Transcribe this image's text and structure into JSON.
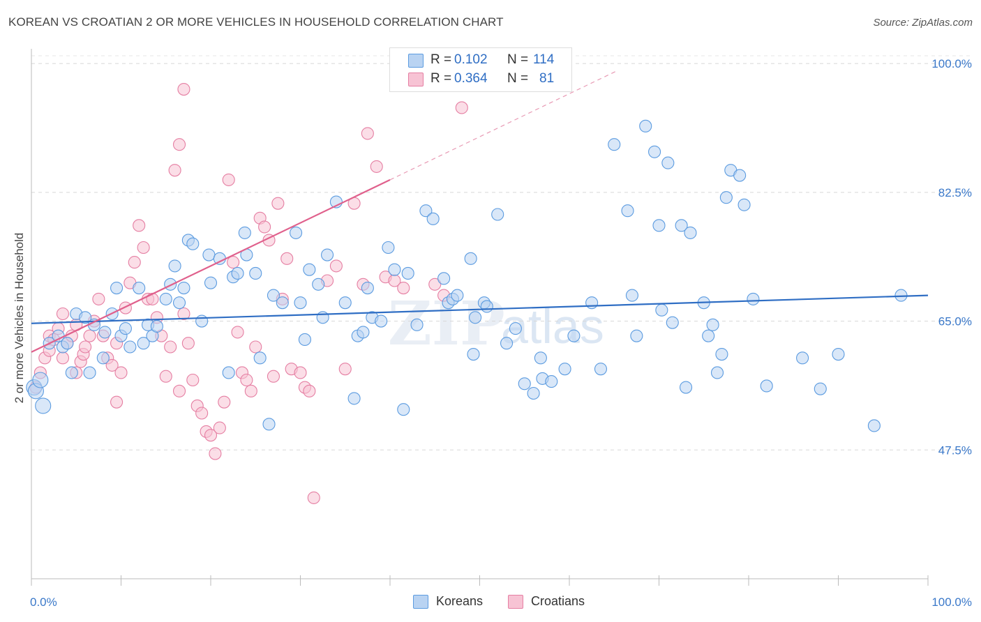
{
  "chart_data": {
    "type": "scatter",
    "title": "KOREAN VS CROATIAN 2 OR MORE VEHICLES IN HOUSEHOLD CORRELATION CHART",
    "source": "Source: ZipAtlas.com",
    "ylabel": "2 or more Vehicles in Household",
    "xlim": [
      0,
      100
    ],
    "ylim": [
      30,
      102
    ],
    "x_tick_labels": [
      "0.0%",
      "100.0%"
    ],
    "y_ticks": [
      47.5,
      65.0,
      82.5,
      100.0
    ],
    "y_tick_labels": [
      "47.5%",
      "65.0%",
      "82.5%",
      "100.0%"
    ],
    "grid": "horizontal dashed",
    "legend_position": "bottom-center",
    "stats": [
      {
        "series": "Koreans",
        "r_label": "R =",
        "r_value": "0.102",
        "n_label": "N =",
        "n_value": "114"
      },
      {
        "series": "Croatians",
        "r_label": "R =",
        "r_value": "0.364",
        "n_label": "N =",
        "n_value": "81"
      }
    ],
    "series": [
      {
        "name": "Koreans",
        "color": "#5b9be0",
        "fill": "#b9d3f2",
        "trend": {
          "x0": 0,
          "y0": 64.7,
          "x1": 100,
          "y1": 68.5
        },
        "points": [
          [
            0.3,
            56
          ],
          [
            0.5,
            55.5
          ],
          [
            1,
            57
          ],
          [
            1.3,
            53.5
          ],
          [
            2,
            62
          ],
          [
            3,
            63
          ],
          [
            3.5,
            61.5
          ],
          [
            4,
            62
          ],
          [
            4.5,
            58
          ],
          [
            5,
            66
          ],
          [
            6,
            65.5
          ],
          [
            6.5,
            58
          ],
          [
            7,
            64.5
          ],
          [
            8,
            60
          ],
          [
            8.2,
            63.5
          ],
          [
            9,
            66
          ],
          [
            9.5,
            69.5
          ],
          [
            10,
            63
          ],
          [
            10.5,
            64
          ],
          [
            11,
            61.5
          ],
          [
            12,
            69.5
          ],
          [
            12.5,
            62
          ],
          [
            13,
            64.5
          ],
          [
            13.5,
            63
          ],
          [
            14,
            64.3
          ],
          [
            15,
            68
          ],
          [
            15.5,
            70
          ],
          [
            16,
            72.5
          ],
          [
            16.5,
            67.5
          ],
          [
            17,
            69.5
          ],
          [
            17.5,
            76
          ],
          [
            18,
            75.5
          ],
          [
            19,
            65
          ],
          [
            19.8,
            74
          ],
          [
            20,
            70.2
          ],
          [
            21,
            73.5
          ],
          [
            22,
            58
          ],
          [
            22.5,
            71
          ],
          [
            23,
            71.5
          ],
          [
            23.8,
            77
          ],
          [
            24,
            74
          ],
          [
            25,
            71.5
          ],
          [
            25.5,
            60
          ],
          [
            26.5,
            51
          ],
          [
            27,
            68.5
          ],
          [
            28,
            67.5
          ],
          [
            29.5,
            77
          ],
          [
            30,
            67.5
          ],
          [
            30.5,
            62.5
          ],
          [
            31,
            72
          ],
          [
            32,
            70
          ],
          [
            32.5,
            65.5
          ],
          [
            33,
            74
          ],
          [
            34,
            81.2
          ],
          [
            35,
            67.5
          ],
          [
            36,
            54.5
          ],
          [
            36.4,
            63
          ],
          [
            37,
            63.5
          ],
          [
            37.5,
            69.5
          ],
          [
            38,
            65.5
          ],
          [
            39,
            65
          ],
          [
            39.8,
            75
          ],
          [
            40.5,
            72
          ],
          [
            41.5,
            53
          ],
          [
            42,
            71.5
          ],
          [
            43,
            64.5
          ],
          [
            44,
            80
          ],
          [
            44.8,
            78.9
          ],
          [
            46,
            70.8
          ],
          [
            46.5,
            67.5
          ],
          [
            47,
            68
          ],
          [
            47.5,
            68.5
          ],
          [
            49,
            73.5
          ],
          [
            49.3,
            60.5
          ],
          [
            49.5,
            65.5
          ],
          [
            50.5,
            67.5
          ],
          [
            50.8,
            67
          ],
          [
            52,
            79.5
          ],
          [
            53,
            62
          ],
          [
            54,
            64
          ],
          [
            55,
            56.5
          ],
          [
            56,
            55.2
          ],
          [
            56.8,
            60
          ],
          [
            57,
            57.2
          ],
          [
            58,
            56.8
          ],
          [
            59.5,
            58.5
          ],
          [
            60.5,
            63
          ],
          [
            62.5,
            67.5
          ],
          [
            63.5,
            58.5
          ],
          [
            65,
            89
          ],
          [
            66.5,
            80
          ],
          [
            67,
            68.5
          ],
          [
            67.5,
            63
          ],
          [
            68.5,
            91.5
          ],
          [
            69.5,
            88
          ],
          [
            70,
            78
          ],
          [
            70.3,
            66.5
          ],
          [
            71,
            86.5
          ],
          [
            71.5,
            64.8
          ],
          [
            72.5,
            78
          ],
          [
            73,
            56
          ],
          [
            73.5,
            77
          ],
          [
            75,
            67.5
          ],
          [
            75.5,
            63
          ],
          [
            76,
            64.5
          ],
          [
            76.5,
            58
          ],
          [
            77,
            60.5
          ],
          [
            77.5,
            81.8
          ],
          [
            78,
            85.5
          ],
          [
            79,
            84.8
          ],
          [
            79.5,
            80.8
          ],
          [
            80.5,
            68
          ],
          [
            82,
            56.2
          ],
          [
            86,
            60
          ],
          [
            88,
            55.8
          ],
          [
            90,
            60.5
          ],
          [
            94,
            50.8
          ],
          [
            97,
            68.5
          ]
        ]
      },
      {
        "name": "Croatians",
        "color": "#e57ea2",
        "fill": "#f7c3d4",
        "trend": {
          "x0": 0,
          "y0": 60.8,
          "x1": 40,
          "y1": 84.2
        },
        "points": [
          [
            0.5,
            56
          ],
          [
            1,
            58
          ],
          [
            1.5,
            60
          ],
          [
            2,
            61
          ],
          [
            2,
            63
          ],
          [
            2.5,
            62.5
          ],
          [
            3,
            64
          ],
          [
            3.5,
            66
          ],
          [
            3.5,
            60
          ],
          [
            4,
            62
          ],
          [
            4.5,
            63
          ],
          [
            5,
            58
          ],
          [
            5,
            64.5
          ],
          [
            5.5,
            59.5
          ],
          [
            5.8,
            60.5
          ],
          [
            6,
            61.5
          ],
          [
            6.5,
            63
          ],
          [
            7,
            65
          ],
          [
            7.5,
            68
          ],
          [
            8,
            63
          ],
          [
            8.5,
            60
          ],
          [
            9,
            59
          ],
          [
            9.5,
            62
          ],
          [
            9.5,
            54
          ],
          [
            10,
            58
          ],
          [
            10.5,
            66.8
          ],
          [
            11,
            70.2
          ],
          [
            11.5,
            73
          ],
          [
            12,
            78
          ],
          [
            12.5,
            75
          ],
          [
            13,
            68
          ],
          [
            13.5,
            68
          ],
          [
            14,
            65.5
          ],
          [
            14.5,
            63
          ],
          [
            15,
            57.5
          ],
          [
            15.5,
            61.5
          ],
          [
            16,
            85.5
          ],
          [
            16.5,
            89
          ],
          [
            16.5,
            55.5
          ],
          [
            17,
            96.5
          ],
          [
            17,
            66
          ],
          [
            17.5,
            62
          ],
          [
            18,
            57
          ],
          [
            18.5,
            53.5
          ],
          [
            19,
            52.5
          ],
          [
            19.5,
            50
          ],
          [
            20,
            49.5
          ],
          [
            20.5,
            47
          ],
          [
            21,
            50.5
          ],
          [
            21.5,
            54
          ],
          [
            22,
            84.2
          ],
          [
            22.5,
            73
          ],
          [
            23,
            63.5
          ],
          [
            23.5,
            58
          ],
          [
            24,
            57
          ],
          [
            24.5,
            55.5
          ],
          [
            25,
            61.5
          ],
          [
            25.5,
            79
          ],
          [
            26,
            77.8
          ],
          [
            26.5,
            76
          ],
          [
            27,
            57.5
          ],
          [
            27.5,
            81
          ],
          [
            28,
            68
          ],
          [
            28.5,
            73.5
          ],
          [
            29,
            58.5
          ],
          [
            30,
            58
          ],
          [
            30.5,
            56
          ],
          [
            31,
            55.5
          ],
          [
            31.5,
            41
          ],
          [
            33,
            70.5
          ],
          [
            34,
            72.5
          ],
          [
            35,
            58.5
          ],
          [
            36,
            81
          ],
          [
            37,
            70
          ],
          [
            37.5,
            90.5
          ],
          [
            38.5,
            86
          ],
          [
            39.5,
            71
          ],
          [
            40.5,
            70.5
          ],
          [
            41.5,
            69.5
          ],
          [
            45,
            70
          ],
          [
            46,
            68.5
          ],
          [
            48,
            94
          ]
        ]
      }
    ],
    "stat_squares": {
      "koreans": "#b9d3f2",
      "croatians": "#f7c3d4"
    },
    "watermark": "ZIPatlas"
  }
}
